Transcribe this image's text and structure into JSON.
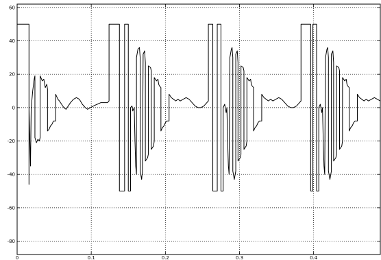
{
  "chart_data": {
    "type": "line",
    "title": "",
    "xlabel": "",
    "ylabel": "",
    "xlim": [
      0,
      0.49
    ],
    "ylim": [
      -88,
      62
    ],
    "xticks": [
      0,
      0.1,
      0.2,
      0.3,
      0.4
    ],
    "xtick_labels": [
      "0",
      "0.1",
      "0.2",
      "0.3",
      "0.4"
    ],
    "yticks": [
      -80,
      -60,
      -40,
      -20,
      0,
      20,
      40,
      60
    ],
    "ytick_labels": [
      "-80",
      "-60",
      "-40",
      "-20",
      "0",
      "20",
      "40",
      "60"
    ],
    "grid": true,
    "legend": "none",
    "colors": {
      "line": "#000000",
      "grid": "#000000",
      "background": "#ffffff"
    },
    "series": [
      {
        "points": [
          [
            0.0,
            0
          ],
          [
            0.0,
            50
          ],
          [
            0.016,
            50
          ],
          [
            0.016,
            -46
          ],
          [
            0.016,
            0
          ],
          [
            0.018,
            -35
          ],
          [
            0.019,
            0
          ],
          [
            0.021,
            10
          ],
          [
            0.023,
            17
          ],
          [
            0.024,
            19
          ],
          [
            0.024,
            -18
          ],
          [
            0.026,
            -21
          ],
          [
            0.028,
            -19
          ],
          [
            0.03,
            -20
          ],
          [
            0.031,
            -18
          ],
          [
            0.031,
            19
          ],
          [
            0.034,
            16
          ],
          [
            0.036,
            17
          ],
          [
            0.038,
            12
          ],
          [
            0.04,
            14
          ],
          [
            0.041,
            11
          ],
          [
            0.041,
            -14
          ],
          [
            0.043,
            -13
          ],
          [
            0.045,
            -11
          ],
          [
            0.047,
            -10
          ],
          [
            0.049,
            -8
          ],
          [
            0.051,
            -8
          ],
          [
            0.052,
            -8
          ],
          [
            0.052,
            8
          ],
          [
            0.055,
            5
          ],
          [
            0.057,
            4
          ],
          [
            0.06,
            2
          ],
          [
            0.063,
            0
          ],
          [
            0.066,
            -1
          ],
          [
            0.069,
            1
          ],
          [
            0.072,
            3
          ],
          [
            0.076,
            5
          ],
          [
            0.08,
            6
          ],
          [
            0.084,
            5
          ],
          [
            0.088,
            2
          ],
          [
            0.092,
            0
          ],
          [
            0.095,
            -1
          ],
          [
            0.099,
            0
          ],
          [
            0.103,
            1
          ],
          [
            0.108,
            2
          ],
          [
            0.113,
            3
          ],
          [
            0.118,
            3
          ],
          [
            0.122,
            3
          ],
          [
            0.124,
            4
          ],
          [
            0.124,
            50
          ],
          [
            0.138,
            50
          ],
          [
            0.138,
            -50
          ],
          [
            0.145,
            -50
          ],
          [
            0.145,
            50
          ],
          [
            0.15,
            50
          ],
          [
            0.15,
            -50
          ],
          [
            0.153,
            -50
          ],
          [
            0.153,
            0
          ],
          [
            0.155,
            1
          ],
          [
            0.156,
            -2
          ],
          [
            0.158,
            0
          ],
          [
            0.159,
            -20
          ],
          [
            0.16,
            -35
          ],
          [
            0.161,
            -40
          ],
          [
            0.161,
            30
          ],
          [
            0.163,
            35
          ],
          [
            0.165,
            36
          ],
          [
            0.166,
            30
          ],
          [
            0.166,
            -38
          ],
          [
            0.168,
            -43
          ],
          [
            0.169,
            -38
          ],
          [
            0.17,
            32
          ],
          [
            0.172,
            34
          ],
          [
            0.173,
            27
          ],
          [
            0.173,
            -32
          ],
          [
            0.176,
            -30
          ],
          [
            0.177,
            -28
          ],
          [
            0.177,
            25
          ],
          [
            0.18,
            24
          ],
          [
            0.181,
            22
          ],
          [
            0.181,
            -25
          ],
          [
            0.184,
            -23
          ],
          [
            0.185,
            -20
          ],
          [
            0.185,
            18
          ],
          [
            0.188,
            16
          ],
          [
            0.19,
            17
          ],
          [
            0.191,
            14
          ],
          [
            0.192,
            13
          ],
          [
            0.194,
            12
          ],
          [
            0.194,
            -14
          ],
          [
            0.196,
            -12
          ],
          [
            0.198,
            -11
          ],
          [
            0.2,
            -9
          ],
          [
            0.202,
            -8
          ],
          [
            0.205,
            -8
          ],
          [
            0.205,
            8
          ],
          [
            0.208,
            6
          ],
          [
            0.211,
            5
          ],
          [
            0.214,
            4
          ],
          [
            0.217,
            5
          ],
          [
            0.22,
            4
          ],
          [
            0.224,
            5
          ],
          [
            0.228,
            6
          ],
          [
            0.232,
            5
          ],
          [
            0.236,
            3
          ],
          [
            0.24,
            1
          ],
          [
            0.244,
            0
          ],
          [
            0.248,
            0
          ],
          [
            0.252,
            1
          ],
          [
            0.256,
            3
          ],
          [
            0.258,
            4
          ],
          [
            0.258,
            50
          ],
          [
            0.264,
            50
          ],
          [
            0.264,
            -50
          ],
          [
            0.27,
            -50
          ],
          [
            0.27,
            50
          ],
          [
            0.275,
            50
          ],
          [
            0.275,
            -50
          ],
          [
            0.278,
            -50
          ],
          [
            0.278,
            0
          ],
          [
            0.28,
            2
          ],
          [
            0.282,
            -3
          ],
          [
            0.283,
            0
          ],
          [
            0.284,
            -20
          ],
          [
            0.285,
            -35
          ],
          [
            0.286,
            -40
          ],
          [
            0.287,
            30
          ],
          [
            0.289,
            35
          ],
          [
            0.29,
            36
          ],
          [
            0.291,
            30
          ],
          [
            0.291,
            -38
          ],
          [
            0.293,
            -43
          ],
          [
            0.295,
            -38
          ],
          [
            0.295,
            32
          ],
          [
            0.297,
            34
          ],
          [
            0.298,
            27
          ],
          [
            0.298,
            -32
          ],
          [
            0.301,
            -30
          ],
          [
            0.302,
            -28
          ],
          [
            0.302,
            25
          ],
          [
            0.305,
            24
          ],
          [
            0.306,
            22
          ],
          [
            0.306,
            -25
          ],
          [
            0.309,
            -23
          ],
          [
            0.31,
            -20
          ],
          [
            0.31,
            18
          ],
          [
            0.313,
            16
          ],
          [
            0.315,
            17
          ],
          [
            0.316,
            14
          ],
          [
            0.317,
            13
          ],
          [
            0.319,
            12
          ],
          [
            0.319,
            -14
          ],
          [
            0.321,
            -12
          ],
          [
            0.323,
            -11
          ],
          [
            0.325,
            -9
          ],
          [
            0.327,
            -8
          ],
          [
            0.33,
            -8
          ],
          [
            0.33,
            8
          ],
          [
            0.333,
            6
          ],
          [
            0.336,
            5
          ],
          [
            0.339,
            4
          ],
          [
            0.342,
            5
          ],
          [
            0.345,
            4
          ],
          [
            0.349,
            5
          ],
          [
            0.353,
            6
          ],
          [
            0.357,
            5
          ],
          [
            0.361,
            3
          ],
          [
            0.365,
            1
          ],
          [
            0.369,
            0
          ],
          [
            0.373,
            0
          ],
          [
            0.377,
            1
          ],
          [
            0.381,
            3
          ],
          [
            0.383,
            4
          ],
          [
            0.383,
            50
          ],
          [
            0.396,
            50
          ],
          [
            0.396,
            -50
          ],
          [
            0.399,
            -50
          ],
          [
            0.399,
            50
          ],
          [
            0.404,
            50
          ],
          [
            0.404,
            -50
          ],
          [
            0.407,
            -50
          ],
          [
            0.407,
            0
          ],
          [
            0.409,
            2
          ],
          [
            0.411,
            -3
          ],
          [
            0.412,
            0
          ],
          [
            0.413,
            -20
          ],
          [
            0.414,
            -35
          ],
          [
            0.415,
            -40
          ],
          [
            0.416,
            30
          ],
          [
            0.418,
            35
          ],
          [
            0.419,
            36
          ],
          [
            0.42,
            30
          ],
          [
            0.42,
            -38
          ],
          [
            0.422,
            -43
          ],
          [
            0.424,
            -38
          ],
          [
            0.424,
            32
          ],
          [
            0.426,
            34
          ],
          [
            0.427,
            27
          ],
          [
            0.427,
            -32
          ],
          [
            0.43,
            -30
          ],
          [
            0.431,
            -28
          ],
          [
            0.431,
            25
          ],
          [
            0.434,
            24
          ],
          [
            0.435,
            22
          ],
          [
            0.435,
            -25
          ],
          [
            0.438,
            -23
          ],
          [
            0.439,
            -20
          ],
          [
            0.439,
            18
          ],
          [
            0.442,
            16
          ],
          [
            0.444,
            17
          ],
          [
            0.445,
            14
          ],
          [
            0.446,
            13
          ],
          [
            0.448,
            12
          ],
          [
            0.448,
            -14
          ],
          [
            0.45,
            -12
          ],
          [
            0.452,
            -11
          ],
          [
            0.454,
            -9
          ],
          [
            0.456,
            -8
          ],
          [
            0.459,
            -8
          ],
          [
            0.459,
            8
          ],
          [
            0.462,
            6
          ],
          [
            0.465,
            5
          ],
          [
            0.468,
            4
          ],
          [
            0.471,
            5
          ],
          [
            0.474,
            4
          ],
          [
            0.478,
            5
          ],
          [
            0.482,
            6
          ],
          [
            0.486,
            5
          ],
          [
            0.49,
            4
          ]
        ]
      }
    ]
  }
}
